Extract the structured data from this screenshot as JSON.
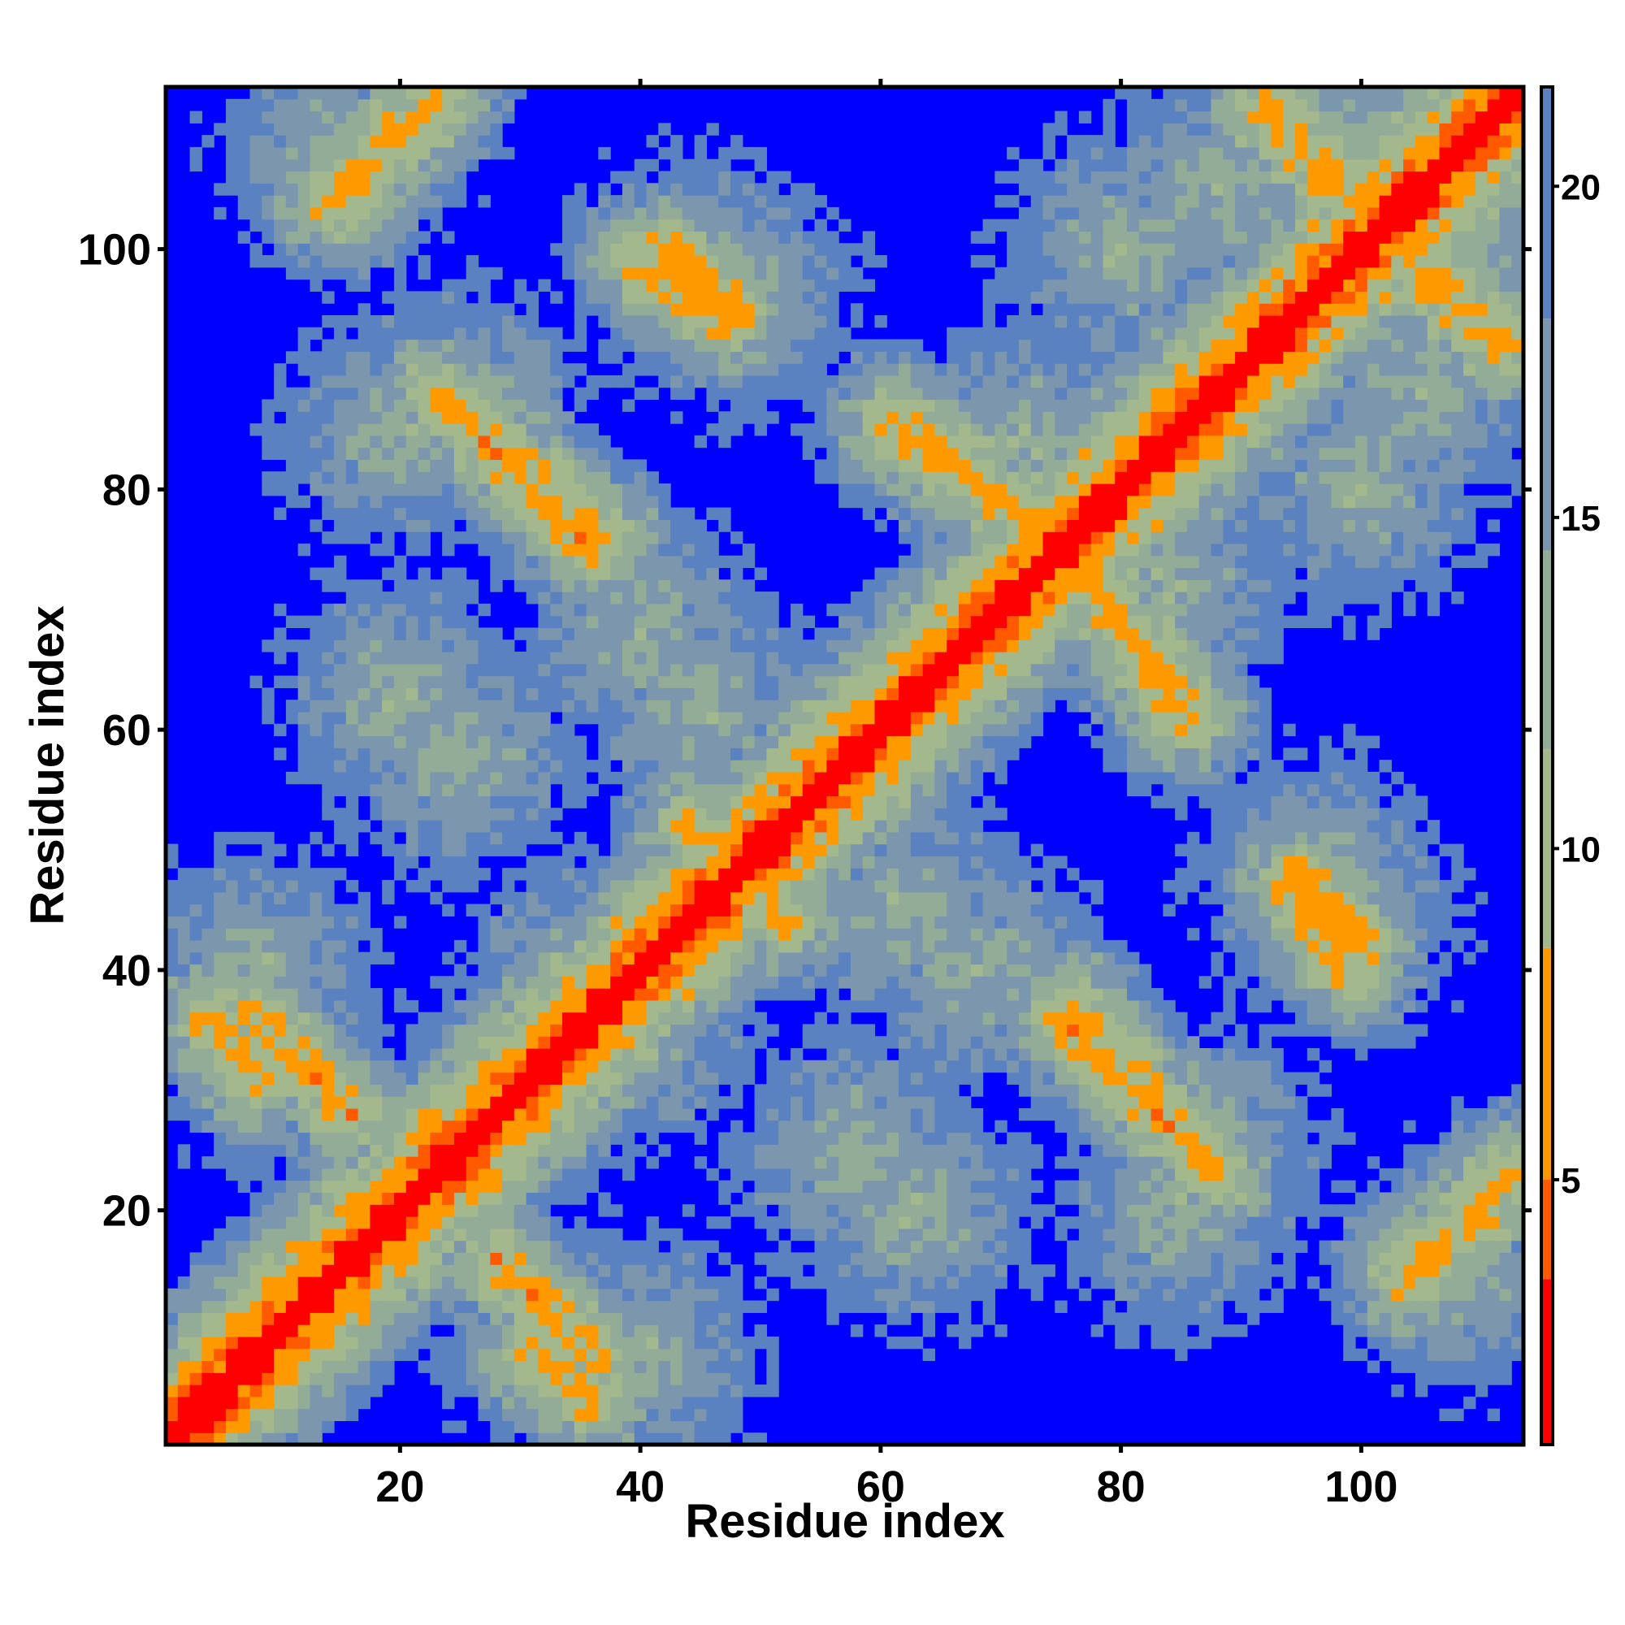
{
  "chart_data": {
    "type": "heatmap",
    "title": "",
    "xlabel": "Residue index",
    "ylabel": "Residue index",
    "xlim": [
      1,
      113
    ],
    "ylim": [
      1,
      113
    ],
    "x_ticks": [
      20,
      40,
      60,
      80,
      100
    ],
    "y_ticks": [
      20,
      40,
      60,
      80,
      100
    ],
    "n_residues": 113,
    "colorbar": {
      "ticks": [
        5,
        10,
        15,
        20
      ],
      "range": [
        1,
        21.5
      ],
      "colors": [
        {
          "from": 1,
          "to": 3.5,
          "color": "#ff0000"
        },
        {
          "from": 3.5,
          "to": 5,
          "color": "#ff5a00"
        },
        {
          "from": 5,
          "to": 8.5,
          "color": "#ff9900"
        },
        {
          "from": 8.5,
          "to": 11.5,
          "color": "#a3b88c"
        },
        {
          "from": 11.5,
          "to": 14.5,
          "color": "#93ac98"
        },
        {
          "from": 14.5,
          "to": 18,
          "color": "#7b96ad"
        },
        {
          "from": 18,
          "to": 21.5,
          "color": "#5a82c0"
        }
      ],
      "above_max_color": "#0000ff"
    },
    "strong_contact_bands": [
      {
        "start": [
          1,
          1
        ],
        "end": [
          113,
          113
        ],
        "value": 1.5
      },
      {
        "start": [
          31,
          8
        ],
        "end": [
          36,
          4
        ],
        "value": 7
      },
      {
        "start": [
          8,
          36
        ],
        "end": [
          16,
          28
        ],
        "value": 7
      },
      {
        "start": [
          20,
          110
        ],
        "end": [
          16,
          104
        ],
        "value": 7
      },
      {
        "start": [
          42,
          100
        ],
        "end": [
          48,
          95
        ],
        "value": 7
      },
      {
        "start": [
          24,
          87
        ],
        "end": [
          36,
          75
        ],
        "value": 7
      },
      {
        "start": [
          61,
          85
        ],
        "end": [
          72,
          78
        ],
        "value": 7
      },
      {
        "start": [
          78,
          72
        ],
        "end": [
          86,
          61
        ],
        "value": 7
      },
      {
        "start": [
          44,
          52
        ],
        "end": [
          52,
          44
        ],
        "value": 7
      },
      {
        "start": [
          76,
          37
        ],
        "end": [
          88,
          23
        ],
        "value": 7
      },
      {
        "start": [
          94,
          47
        ],
        "end": [
          99,
          40
        ],
        "value": 7
      },
      {
        "start": [
          92,
          111
        ],
        "end": [
          112,
          92
        ],
        "value": 7
      },
      {
        "start": [
          104,
          14
        ],
        "end": [
          112,
          23
        ],
        "value": 7
      }
    ],
    "contact_blobs": [
      {
        "center": [
          25,
          87
        ],
        "value": 12
      },
      {
        "center": [
          48,
          96
        ],
        "value": 12
      },
      {
        "center": [
          88,
          105
        ],
        "value": 12
      },
      {
        "center": [
          108,
          100
        ],
        "value": 12
      },
      {
        "center": [
          20,
          63
        ],
        "value": 12
      },
      {
        "center": [
          45,
          62
        ],
        "value": 12
      },
      {
        "center": [
          72,
          84
        ],
        "value": 12
      },
      {
        "center": [
          100,
          80
        ],
        "value": 12
      },
      {
        "center": [
          8,
          40
        ],
        "value": 12
      },
      {
        "center": [
          35,
          40
        ],
        "value": 12
      },
      {
        "center": [
          68,
          40
        ],
        "value": 12
      },
      {
        "center": [
          98,
          45
        ],
        "value": 12
      },
      {
        "center": [
          33,
          10
        ],
        "value": 12
      },
      {
        "center": [
          58,
          25
        ],
        "value": 12
      },
      {
        "center": [
          85,
          20
        ],
        "value": 12
      },
      {
        "center": [
          108,
          15
        ],
        "value": 12
      }
    ]
  }
}
